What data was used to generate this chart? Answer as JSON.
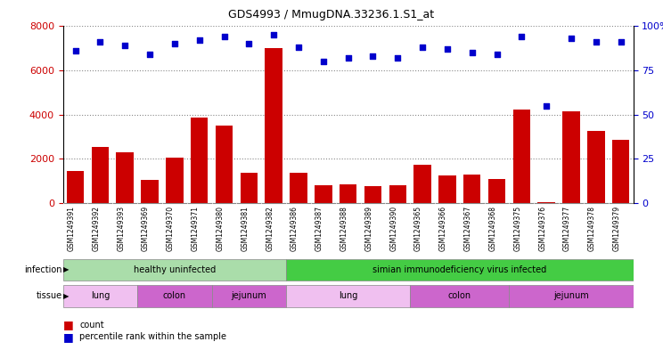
{
  "title": "GDS4993 / MmugDNA.33236.1.S1_at",
  "samples": [
    "GSM1249391",
    "GSM1249392",
    "GSM1249393",
    "GSM1249369",
    "GSM1249370",
    "GSM1249371",
    "GSM1249380",
    "GSM1249381",
    "GSM1249382",
    "GSM1249386",
    "GSM1249387",
    "GSM1249388",
    "GSM1249389",
    "GSM1249390",
    "GSM1249365",
    "GSM1249366",
    "GSM1249367",
    "GSM1249368",
    "GSM1249375",
    "GSM1249376",
    "GSM1249377",
    "GSM1249378",
    "GSM1249379"
  ],
  "counts": [
    1450,
    2550,
    2300,
    1050,
    2050,
    3850,
    3500,
    1350,
    7000,
    1350,
    800,
    850,
    750,
    800,
    1750,
    1250,
    1300,
    1100,
    4250,
    50,
    4150,
    3250,
    2850
  ],
  "percentiles": [
    86,
    91,
    89,
    84,
    90,
    92,
    94,
    90,
    95,
    88,
    80,
    82,
    83,
    82,
    88,
    87,
    85,
    84,
    94,
    55,
    93,
    91,
    91
  ],
  "bar_color": "#cc0000",
  "dot_color": "#0000cc",
  "ylim_left": [
    0,
    8000
  ],
  "ylim_right": [
    0,
    100
  ],
  "yticks_left": [
    0,
    2000,
    4000,
    6000,
    8000
  ],
  "yticks_right": [
    0,
    25,
    50,
    75,
    100
  ],
  "infection_groups": [
    {
      "label": "healthy uninfected",
      "start": 0,
      "end": 9,
      "color": "#aaddaa"
    },
    {
      "label": "simian immunodeficiency virus infected",
      "start": 9,
      "end": 23,
      "color": "#44cc44"
    }
  ],
  "tissue_groups": [
    {
      "label": "lung",
      "start": 0,
      "end": 3,
      "color": "#f0c0f0"
    },
    {
      "label": "colon",
      "start": 3,
      "end": 6,
      "color": "#cc66cc"
    },
    {
      "label": "jejunum",
      "start": 6,
      "end": 9,
      "color": "#cc66cc"
    },
    {
      "label": "lung",
      "start": 9,
      "end": 14,
      "color": "#f0c0f0"
    },
    {
      "label": "colon",
      "start": 14,
      "end": 18,
      "color": "#cc66cc"
    },
    {
      "label": "jejunum",
      "start": 18,
      "end": 23,
      "color": "#cc66cc"
    }
  ],
  "legend_count_label": "count",
  "legend_pct_label": "percentile rank within the sample"
}
